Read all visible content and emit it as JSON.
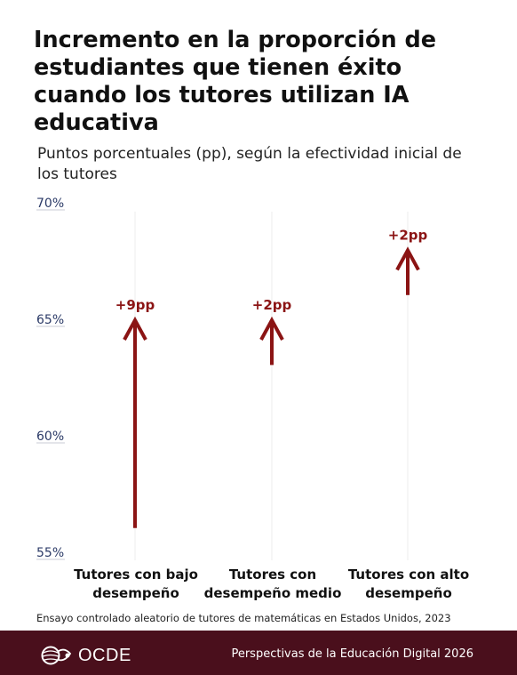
{
  "title": "Incremento en la proporción de estudiantes que tienen éxito cuando los tutores utilizan IA educativa",
  "subtitle": "Puntos porcentuales (pp), según la efectividad inicial de los tutores",
  "source": "Ensayo controlado aleatorio de tutores de matemáticas en Estados Unidos, 2023",
  "footer": {
    "logo_text": "OCDE",
    "publication": "Perspectivas de la Educación Digital 2026"
  },
  "colors": {
    "arrow": "#8b1414",
    "label": "#8b1414",
    "axis_tick": "#2b3a67",
    "footer_bg": "#4a0f1c"
  },
  "chart_data": {
    "type": "arrow",
    "ylim": [
      55,
      70
    ],
    "yticks": [
      55,
      60,
      65,
      70
    ],
    "ytick_labels": [
      "55%",
      "60%",
      "65%",
      "70%"
    ],
    "categories": [
      [
        "Tutores con bajo",
        "desempeño"
      ],
      [
        "Tutores con",
        "desempeño medio"
      ],
      [
        "Tutores con alto",
        "desempeño"
      ]
    ],
    "series": [
      {
        "start": [
          56.0,
          63.0,
          66.0
        ],
        "end": [
          65.0,
          65.0,
          68.0
        ],
        "labels": [
          "+9pp",
          "+2pp",
          "+2pp"
        ]
      }
    ],
    "grid": false
  }
}
